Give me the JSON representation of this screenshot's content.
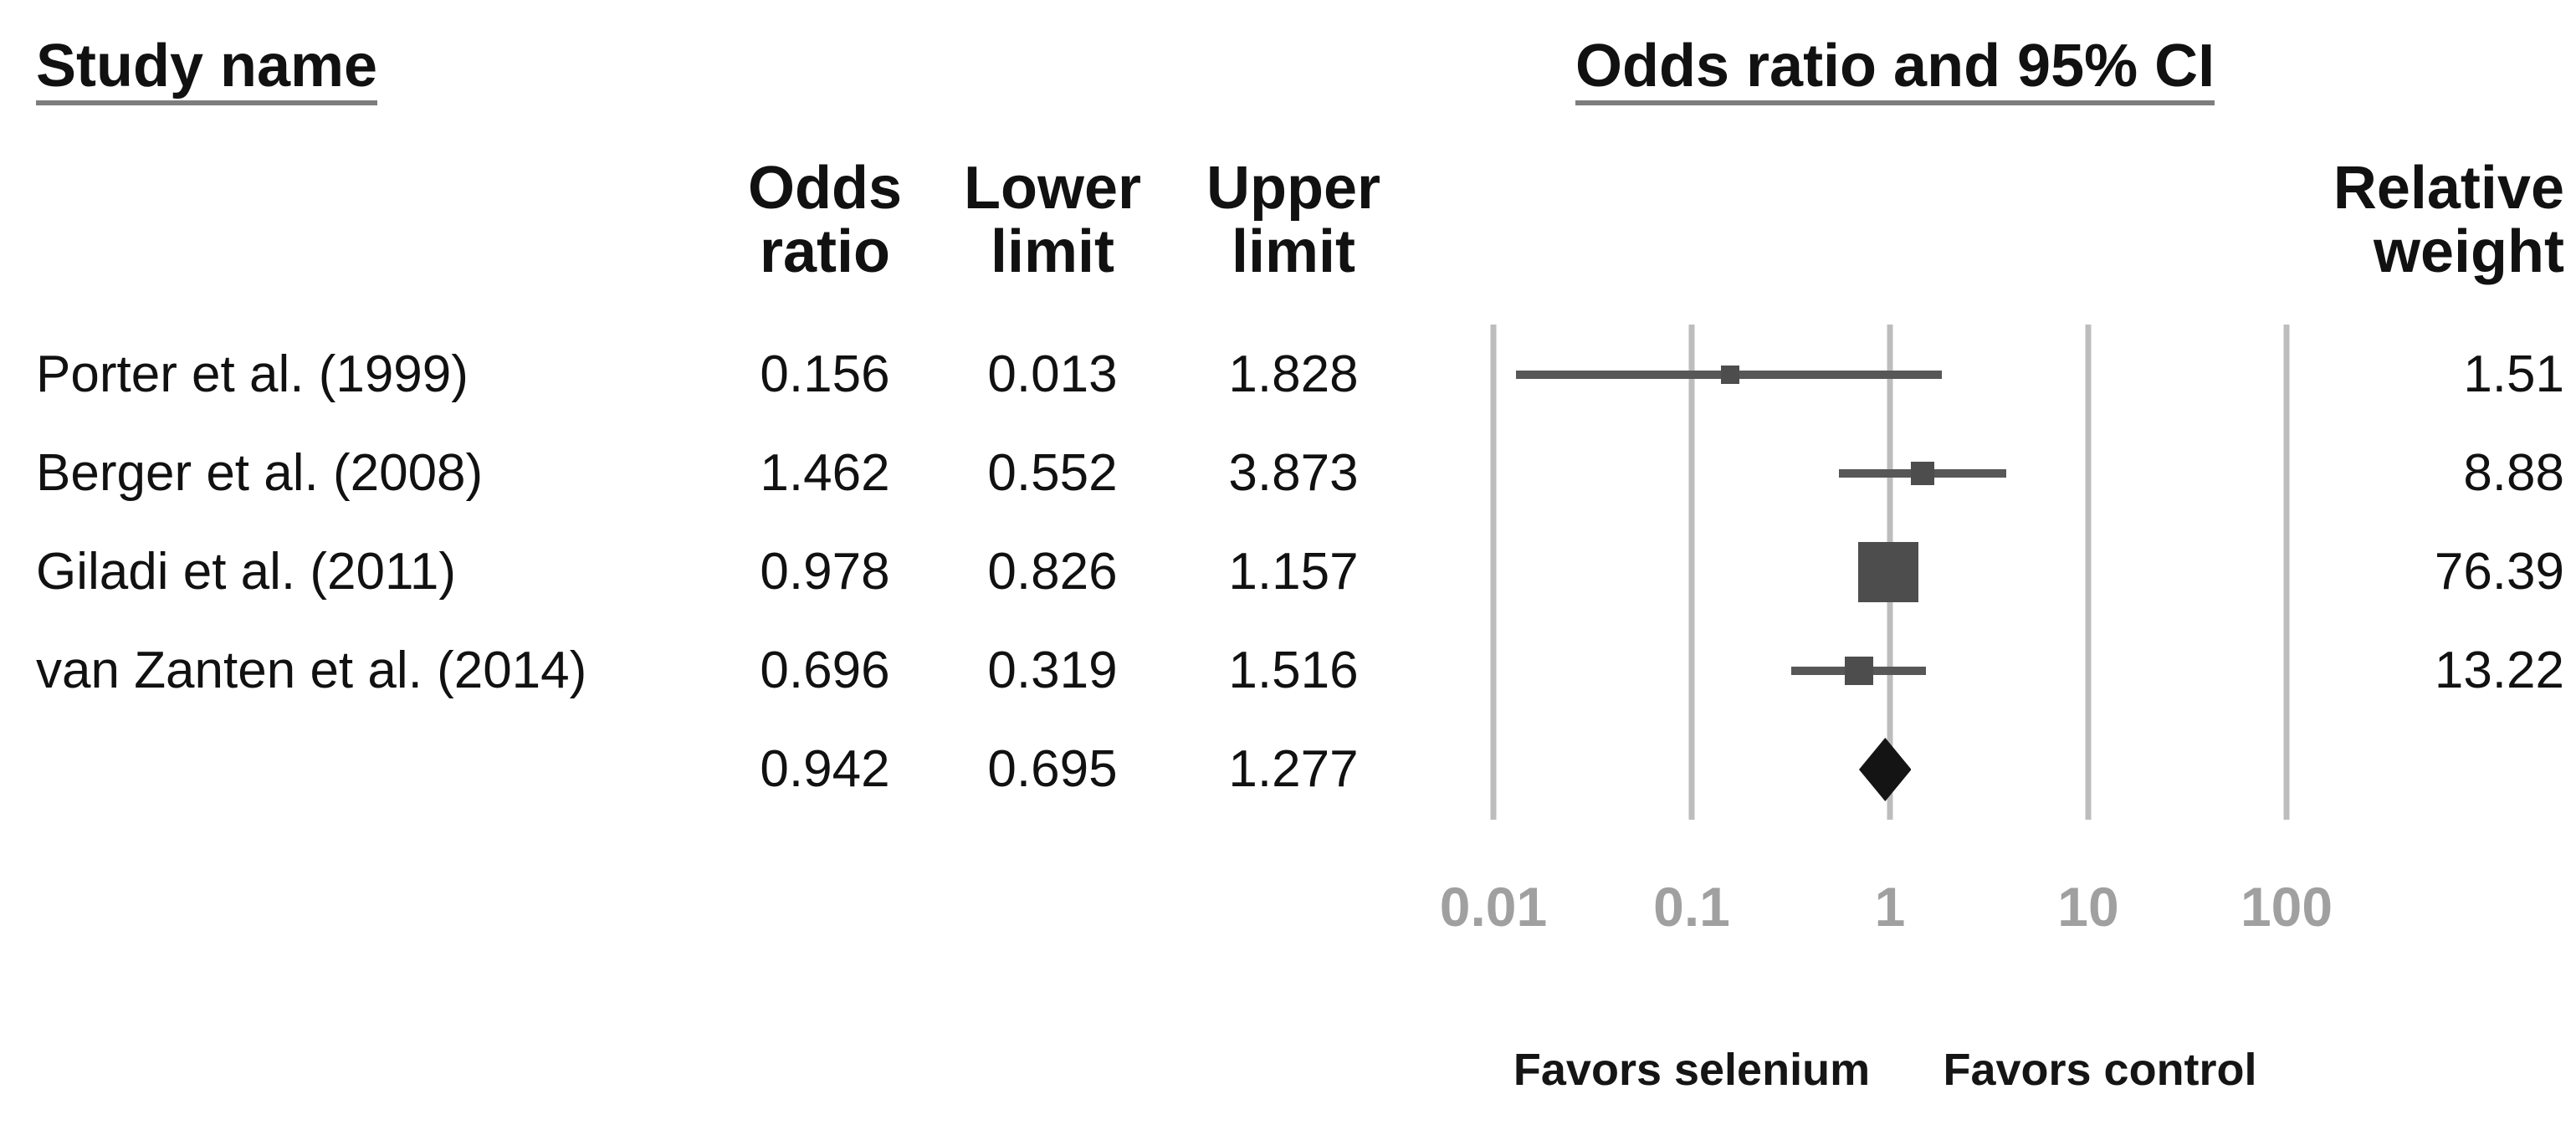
{
  "headers": {
    "study_name": "Study name",
    "or_ci": "Odds ratio and 95% CI"
  },
  "columns": [
    {
      "id": "odds-ratio",
      "line1": "Odds",
      "line2": "ratio"
    },
    {
      "id": "lower-limit",
      "line1": "Lower",
      "line2": "limit"
    },
    {
      "id": "upper-limit",
      "line1": "Upper",
      "line2": "limit"
    },
    {
      "id": "relative-weight",
      "line1": "Relative",
      "line2": "weight"
    }
  ],
  "axis": {
    "tick_labels": [
      "0.01",
      "0.1",
      "1",
      "10",
      "100"
    ],
    "tick_values": [
      0.01,
      0.1,
      1,
      10,
      100
    ],
    "favors_left": "Favors selenium",
    "favors_right": "Favors control"
  },
  "chart_data": {
    "type": "forest",
    "x_scale": "log10",
    "xlim": [
      0.01,
      100
    ],
    "grid": "vertical-log-decades",
    "legend_position": "none",
    "studies": [
      {
        "name": "Porter et al. (1999)",
        "odds_ratio": 0.156,
        "lower": 0.013,
        "upper": 1.828,
        "weight": 1.51,
        "marker_px": 22
      },
      {
        "name": "Berger et al. (2008)",
        "odds_ratio": 1.462,
        "lower": 0.552,
        "upper": 3.873,
        "weight": 8.88,
        "marker_px": 28
      },
      {
        "name": "Giladi et al. (2011)",
        "odds_ratio": 0.978,
        "lower": 0.826,
        "upper": 1.157,
        "weight": 76.39,
        "marker_px": 72
      },
      {
        "name": "van Zanten et al. (2014)",
        "odds_ratio": 0.696,
        "lower": 0.319,
        "upper": 1.516,
        "weight": 13.22,
        "marker_px": 34
      }
    ],
    "summary": {
      "odds_ratio": 0.942,
      "lower": 0.695,
      "upper": 1.277
    }
  },
  "colors": {
    "text": "#111111",
    "marker": "#4d4d4d",
    "ci_line": "#575757",
    "gridline": "#bdbdbd",
    "axis_label": "#a0a0a0",
    "diamond": "#141414",
    "underline": "#7d7d7d"
  }
}
